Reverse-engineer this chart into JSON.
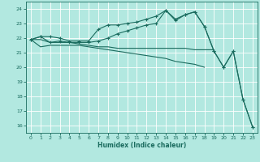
{
  "x": [
    0,
    1,
    2,
    3,
    4,
    5,
    6,
    7,
    8,
    9,
    10,
    11,
    12,
    13,
    14,
    15,
    16,
    17,
    18,
    19,
    20,
    21,
    22,
    23
  ],
  "line1": [
    21.9,
    22.1,
    22.1,
    22.0,
    21.8,
    21.8,
    21.8,
    22.6,
    22.9,
    22.9,
    23.0,
    23.1,
    23.3,
    23.5,
    23.9,
    23.2,
    23.6,
    23.8,
    22.8,
    21.1,
    20.0,
    21.1,
    17.8,
    15.9
  ],
  "line2": [
    21.9,
    22.1,
    21.7,
    21.8,
    21.7,
    21.7,
    21.7,
    21.8,
    22.0,
    22.3,
    22.5,
    22.7,
    22.9,
    23.0,
    23.9,
    23.3,
    23.6,
    23.8,
    22.8,
    21.1,
    20.0,
    21.1,
    17.8,
    15.9
  ],
  "line3": [
    21.9,
    21.9,
    21.7,
    21.7,
    21.7,
    21.6,
    21.5,
    21.4,
    21.4,
    21.3,
    21.3,
    21.3,
    21.3,
    21.3,
    21.3,
    21.3,
    21.3,
    21.2,
    21.2,
    21.2,
    null,
    null,
    null,
    null
  ],
  "line4": [
    21.9,
    21.4,
    21.5,
    21.5,
    21.5,
    21.5,
    21.4,
    21.3,
    21.2,
    21.1,
    21.0,
    20.9,
    20.8,
    20.7,
    20.6,
    20.4,
    20.3,
    20.2,
    20.0,
    null,
    null,
    null,
    null,
    null
  ],
  "line_color": "#1a6b5e",
  "bg_color": "#b2e8e0",
  "grid_color": "#ffffff",
  "xlabel": "Humidex (Indice chaleur)",
  "ylim": [
    15.5,
    24.5
  ],
  "xlim": [
    -0.5,
    23.5
  ],
  "yticks": [
    16,
    17,
    18,
    19,
    20,
    21,
    22,
    23,
    24
  ],
  "xticks": [
    0,
    1,
    2,
    3,
    4,
    5,
    6,
    7,
    8,
    9,
    10,
    11,
    12,
    13,
    14,
    15,
    16,
    17,
    18,
    19,
    20,
    21,
    22,
    23
  ]
}
